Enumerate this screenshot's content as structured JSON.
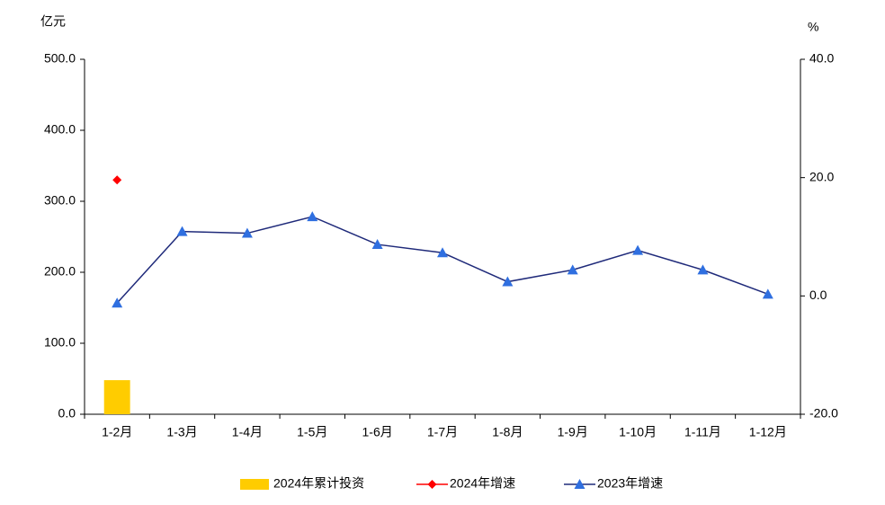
{
  "chart_data": {
    "type": "bar",
    "y_unit": "亿元",
    "y2_unit": "%",
    "categories": [
      "1-2月",
      "1-3月",
      "1-4月",
      "1-5月",
      "1-6月",
      "1-7月",
      "1-8月",
      "1-9月",
      "1-10月",
      "1-11月",
      "1-12月"
    ],
    "series": [
      {
        "name": "2024年累计投资",
        "type": "bar",
        "axis": "y",
        "color": "#ffcc00",
        "values": [
          48,
          null,
          null,
          null,
          null,
          null,
          null,
          null,
          null,
          null,
          null
        ]
      },
      {
        "name": "2024年增速",
        "type": "line",
        "axis": "y2",
        "color": "#ff0000",
        "marker": "diamond",
        "values": [
          19.6,
          null,
          null,
          null,
          null,
          null,
          null,
          null,
          null,
          null,
          null
        ]
      },
      {
        "name": "2023年增速",
        "type": "line",
        "axis": "y2",
        "color": "#1f2a7a",
        "marker_color": "#2f6fe0",
        "marker": "triangle",
        "values": [
          -1.2,
          10.9,
          10.6,
          13.4,
          8.7,
          7.3,
          2.4,
          4.4,
          7.7,
          4.4,
          0.3
        ]
      }
    ],
    "ylim": [
      0,
      500
    ],
    "yticks": [
      {
        "value": 0,
        "label": "0.0"
      },
      {
        "value": 100,
        "label": "100.0"
      },
      {
        "value": 200,
        "label": "200.0"
      },
      {
        "value": 300,
        "label": "300.0"
      },
      {
        "value": 400,
        "label": "400.0"
      },
      {
        "value": 500,
        "label": "500.0"
      }
    ],
    "y2lim": [
      -20,
      40
    ],
    "y2ticks": [
      {
        "value": -20,
        "label": "-20.0"
      },
      {
        "value": 0,
        "label": "0.0"
      },
      {
        "value": 20,
        "label": "20.0"
      },
      {
        "value": 40,
        "label": "40.0"
      }
    ],
    "grid": false,
    "legend": "bottom"
  }
}
